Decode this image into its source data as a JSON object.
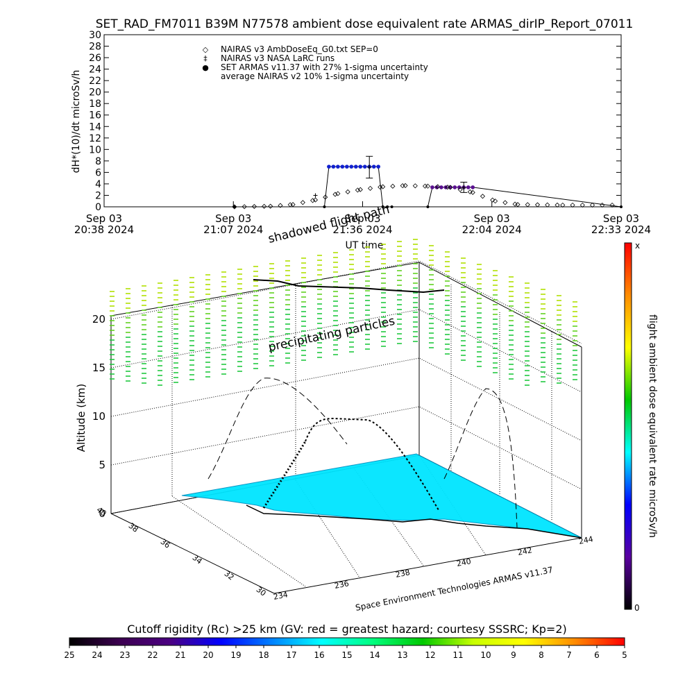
{
  "title": "SET_RAD_FM7011  B39M N77578 ambient dose equivalent rate ARMAS_dirIP_Report_07011",
  "top_chart": {
    "ylabel": "dH*(10)/dt microSv/h",
    "xlabel": "UT time",
    "y_ticks": [
      "0",
      "2",
      "4",
      "6",
      "8",
      "10",
      "12",
      "14",
      "16",
      "18",
      "20",
      "22",
      "24",
      "26",
      "28",
      "30"
    ],
    "x_ticks": [
      {
        "line1": "Sep 03",
        "line2": "20:38 2024"
      },
      {
        "line1": "Sep 03",
        "line2": "21:07 2024"
      },
      {
        "line1": "Sep 03",
        "line2": "21:36 2024"
      },
      {
        "line1": "Sep 03",
        "line2": "22:04 2024"
      },
      {
        "line1": "Sep 03",
        "line2": "22:33 2024"
      }
    ],
    "legend": [
      {
        "symbol": "◇",
        "text": "NAIRAS v3 AmbDoseEq_G0.txt SEP=0"
      },
      {
        "symbol": "‡",
        "text": "NAIRAS v3 NASA LaRC runs"
      },
      {
        "symbol": "●",
        "text": "SET ARMAS v11.37 with 27% 1-sigma uncertainty"
      },
      {
        "symbol": "",
        "text": "average NAIRAS v2 10% 1-sigma uncertainty"
      }
    ]
  },
  "chart_data": [
    {
      "type": "line",
      "title": "SET_RAD_FM7011  B39M N77578 ambient dose equivalent rate ARMAS_dirIP_Report_07011",
      "xlabel": "UT time",
      "ylabel": "dH*(10)/dt microSv/h",
      "xlim": [
        "20:38",
        "22:33"
      ],
      "ylim": [
        0,
        30
      ],
      "series": [
        {
          "name": "SET ARMAS v11.37 with 27% 1-sigma uncertainty",
          "x": [
            "21:07",
            "21:27",
            "21:28",
            "21:29",
            "21:30",
            "21:31",
            "21:32",
            "21:33",
            "21:34",
            "21:35",
            "21:36",
            "21:37",
            "21:38",
            "21:39",
            "21:40",
            "21:41",
            "21:42",
            "21:50",
            "21:51",
            "21:52",
            "21:53",
            "21:54",
            "21:55",
            "21:56",
            "21:57",
            "21:58",
            "21:59",
            "22:00",
            "22:33"
          ],
          "y": [
            0,
            0,
            7,
            7,
            7,
            7,
            7,
            7,
            7,
            7,
            7,
            7,
            7,
            7,
            0,
            0,
            0,
            0,
            3.4,
            3.4,
            3.4,
            3.4,
            3.4,
            3.4,
            3.4,
            3.4,
            3.4,
            3.4,
            0
          ]
        },
        {
          "name": "NAIRAS v3 AmbDoseEq_G0.txt SEP=0",
          "x": [
            "21:07",
            "21:15",
            "21:20",
            "21:25",
            "21:30",
            "21:35",
            "21:40",
            "21:45",
            "21:50",
            "21:55",
            "22:00",
            "22:05",
            "22:10",
            "22:20",
            "22:33"
          ],
          "y": [
            0,
            0.1,
            0.4,
            1.2,
            2.3,
            3.0,
            3.5,
            3.7,
            3.6,
            3.4,
            2.5,
            1.0,
            0.4,
            0.3,
            0.3
          ]
        },
        {
          "name": "NAIRAS v3 NASA LaRC runs",
          "x": [
            "21:25",
            "21:37",
            "21:58"
          ],
          "y": [
            2.0,
            6.9,
            3.3
          ]
        }
      ]
    },
    {
      "type": "scatter",
      "zlabel": "Altitude (km)",
      "z_ticks": [
        "0",
        "5",
        "10",
        "15",
        "20"
      ],
      "lat_ticks": [
        "30",
        "32",
        "34",
        "36",
        "38",
        "40"
      ],
      "lon_ticks": [
        "234",
        "236",
        "238",
        "240",
        "242",
        "244"
      ],
      "annotations": [
        "shadowed flight path",
        "precipitating particles"
      ],
      "credit": "Space Environment Technologies ARMAS v11.37"
    }
  ],
  "side_colorbar": {
    "label": "flight ambient dose equivalent rate microSv/h",
    "top": "x",
    "bottom": "0",
    "colors": [
      "#ff0000",
      "#ff8c00",
      "#ffff00",
      "#00c800",
      "#00ffff",
      "#0000ff",
      "#5a00a0",
      "#000000"
    ]
  },
  "bottom_colorbar": {
    "title": "Cutoff rigidity (Rc) >25 km (GV: red = greatest hazard; courtesy SSSRC; Kp=2)",
    "ticks": [
      "25",
      "24",
      "23",
      "22",
      "21",
      "20",
      "19",
      "18",
      "17",
      "16",
      "15",
      "14",
      "13",
      "12",
      "11",
      "10",
      "9",
      "8",
      "7",
      "6",
      "5"
    ],
    "colors": [
      "#000000",
      "#3c0050",
      "#4b0082",
      "#0000ff",
      "#0080ff",
      "#00ffff",
      "#00ff80",
      "#00c800",
      "#c8ff00",
      "#ffff00",
      "#ff8c00",
      "#ff0000"
    ]
  }
}
